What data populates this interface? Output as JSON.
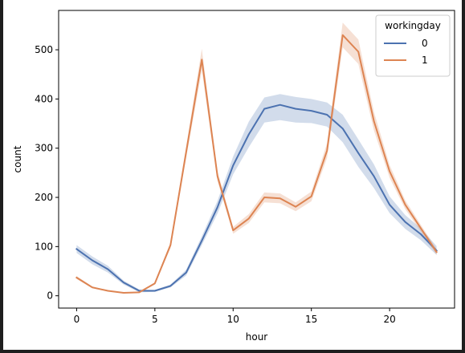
{
  "chart_data": {
    "type": "line",
    "xlabel": "hour",
    "ylabel": "count",
    "xlim": [
      -1.15,
      24.15
    ],
    "ylim": [
      -25,
      580
    ],
    "x_ticks": [
      0,
      5,
      10,
      15,
      20
    ],
    "y_ticks": [
      0,
      100,
      200,
      300,
      400,
      500
    ],
    "legend": {
      "title": "workingday",
      "placement": "top-right"
    },
    "x": [
      0,
      1,
      2,
      3,
      4,
      5,
      6,
      7,
      8,
      9,
      10,
      11,
      12,
      13,
      14,
      15,
      16,
      17,
      18,
      19,
      20,
      21,
      22,
      23
    ],
    "series": [
      {
        "name": "0",
        "color": "#4c72b0",
        "values": [
          95,
          72,
          54,
          27,
          10,
          10,
          20,
          47,
          112,
          180,
          265,
          328,
          380,
          388,
          380,
          376,
          368,
          340,
          290,
          243,
          185,
          150,
          125,
          92
        ],
        "ci_lower": [
          87,
          64,
          47,
          23,
          7,
          8,
          17,
          41,
          103,
          167,
          247,
          302,
          352,
          357,
          352,
          351,
          344,
          312,
          262,
          219,
          168,
          136,
          113,
          83
        ],
        "ci_upper": [
          103,
          80,
          61,
          31,
          13,
          12,
          23,
          53,
          121,
          193,
          283,
          354,
          403,
          410,
          404,
          400,
          393,
          368,
          318,
          267,
          202,
          164,
          137,
          101
        ]
      },
      {
        "name": "1",
        "color": "#dd8452",
        "values": [
          37,
          17,
          10,
          6,
          7,
          25,
          103,
          292,
          480,
          243,
          133,
          157,
          200,
          198,
          181,
          202,
          295,
          530,
          496,
          355,
          253,
          185,
          137,
          89
        ],
        "ci_lower": [
          34,
          15,
          9,
          5,
          6,
          23,
          97,
          280,
          458,
          233,
          126,
          148,
          190,
          188,
          172,
          192,
          280,
          505,
          471,
          336,
          240,
          176,
          130,
          83
        ],
        "ci_upper": [
          40,
          19,
          11,
          7,
          8,
          27,
          109,
          304,
          502,
          253,
          140,
          166,
          210,
          208,
          190,
          212,
          310,
          555,
          521,
          374,
          266,
          194,
          144,
          95
        ]
      }
    ]
  }
}
